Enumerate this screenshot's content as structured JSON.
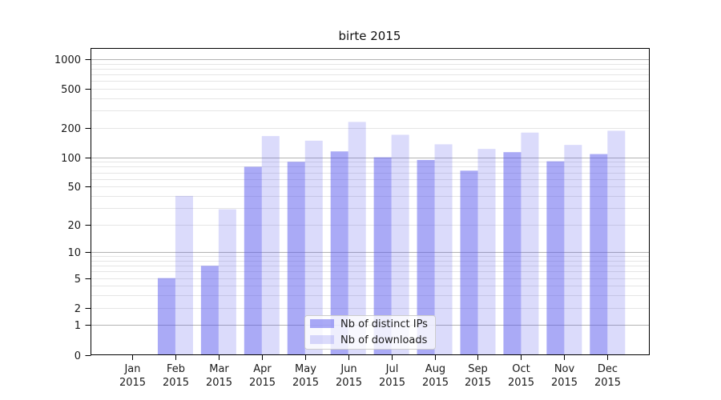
{
  "chart_data": {
    "type": "bar",
    "title": "birte 2015",
    "categories": [
      "Jan",
      "Feb",
      "Mar",
      "Apr",
      "May",
      "Jun",
      "Jul",
      "Aug",
      "Sep",
      "Oct",
      "Nov",
      "Dec"
    ],
    "year": "2015",
    "series": [
      {
        "name": "Nb of distinct IPs",
        "color": "rgba(85,85,238,0.50)",
        "values": [
          0,
          5,
          7,
          80,
          90,
          115,
          100,
          94,
          73,
          113,
          91,
          108
        ]
      },
      {
        "name": "Nb of downloads",
        "color": "rgba(85,85,238,0.21)",
        "values": [
          0,
          40,
          29,
          165,
          148,
          230,
          170,
          136,
          122,
          179,
          134,
          187
        ]
      }
    ],
    "yscale": "log1p",
    "ylim": [
      0,
      1000
    ],
    "yticks": [
      0,
      1,
      2,
      5,
      10,
      20,
      50,
      100,
      200,
      500,
      1000
    ],
    "grid_major": [
      1,
      10,
      100,
      1000
    ],
    "grid_minor_mantissas": [
      2,
      3,
      4,
      5,
      6,
      7,
      8,
      9
    ],
    "grid_decades": [
      1,
      10,
      100
    ],
    "legend_position": "lower-center",
    "colors": {
      "axis": "#000000",
      "tick_text": "#1a1a1a",
      "grid_major": "#b3b3b3",
      "grid_minor": "#e5e5e5",
      "legend_bg": "rgba(255,255,255,0.8)",
      "legend_border": "#cccccc"
    }
  }
}
